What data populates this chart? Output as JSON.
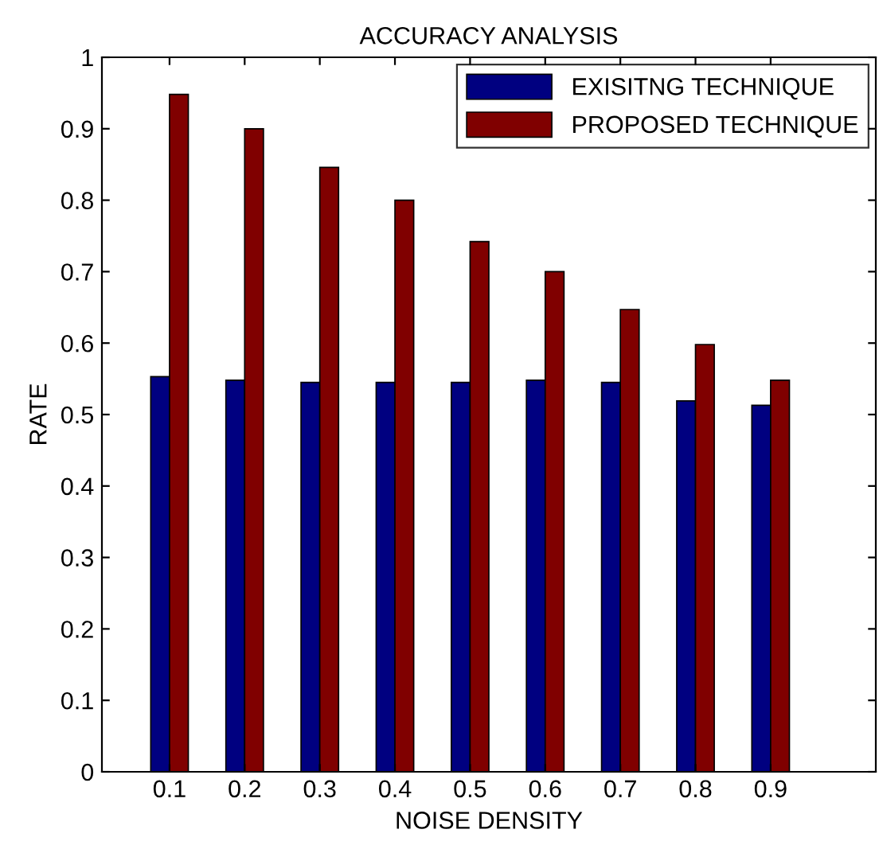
{
  "chart_data": {
    "type": "bar",
    "title": "ACCURACY ANALYSIS",
    "xlabel": "NOISE DENSITY",
    "ylabel": "RATE",
    "categories": [
      "0.1",
      "0.2",
      "0.3",
      "0.4",
      "0.5",
      "0.6",
      "0.7",
      "0.8",
      "0.9"
    ],
    "series": [
      {
        "name": "EXISITNG TECHNIQUE",
        "color": "#000080",
        "values": [
          0.553,
          0.548,
          0.545,
          0.545,
          0.545,
          0.548,
          0.545,
          0.519,
          0.513
        ]
      },
      {
        "name": "PROPOSED TECHNIQUE",
        "color": "#800000",
        "values": [
          0.948,
          0.9,
          0.846,
          0.8,
          0.742,
          0.7,
          0.647,
          0.598,
          0.548
        ]
      }
    ],
    "ylim": [
      0,
      1
    ],
    "yticks": [
      0,
      0.1,
      0.2,
      0.3,
      0.4,
      0.5,
      0.6,
      0.7,
      0.8,
      0.9,
      1
    ],
    "legend": "top right",
    "grid": false
  }
}
